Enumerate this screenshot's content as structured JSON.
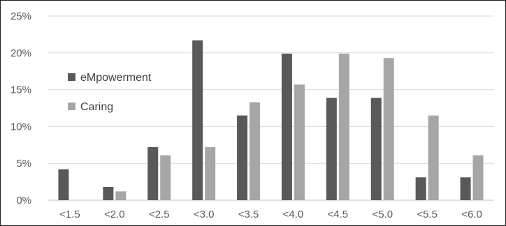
{
  "chart_data": {
    "type": "bar",
    "title": "",
    "xlabel": "",
    "ylabel": "",
    "categories": [
      "<1.5",
      "<2.0",
      "<2.5",
      "<3.0",
      "<3.5",
      "<4.0",
      "<4.5",
      "<5.0",
      "<5.5",
      "<6.0"
    ],
    "series": [
      {
        "name": "eMpowerment",
        "color": "#595959",
        "values": [
          4.2,
          1.8,
          7.2,
          21.7,
          11.5,
          19.9,
          13.9,
          13.9,
          3.1,
          3.1
        ]
      },
      {
        "name": "Caring",
        "color": "#a6a6a6",
        "values": [
          0.0,
          1.2,
          6.1,
          7.2,
          13.3,
          15.7,
          19.9,
          19.3,
          11.5,
          6.1
        ]
      }
    ],
    "ylim": [
      0,
      25
    ],
    "yticks": [
      "0%",
      "5%",
      "10%",
      "15%",
      "20%",
      "25%"
    ],
    "ytick_values": [
      0,
      5,
      10,
      15,
      20,
      25
    ],
    "grid": true,
    "legend_position": "upper-left"
  }
}
